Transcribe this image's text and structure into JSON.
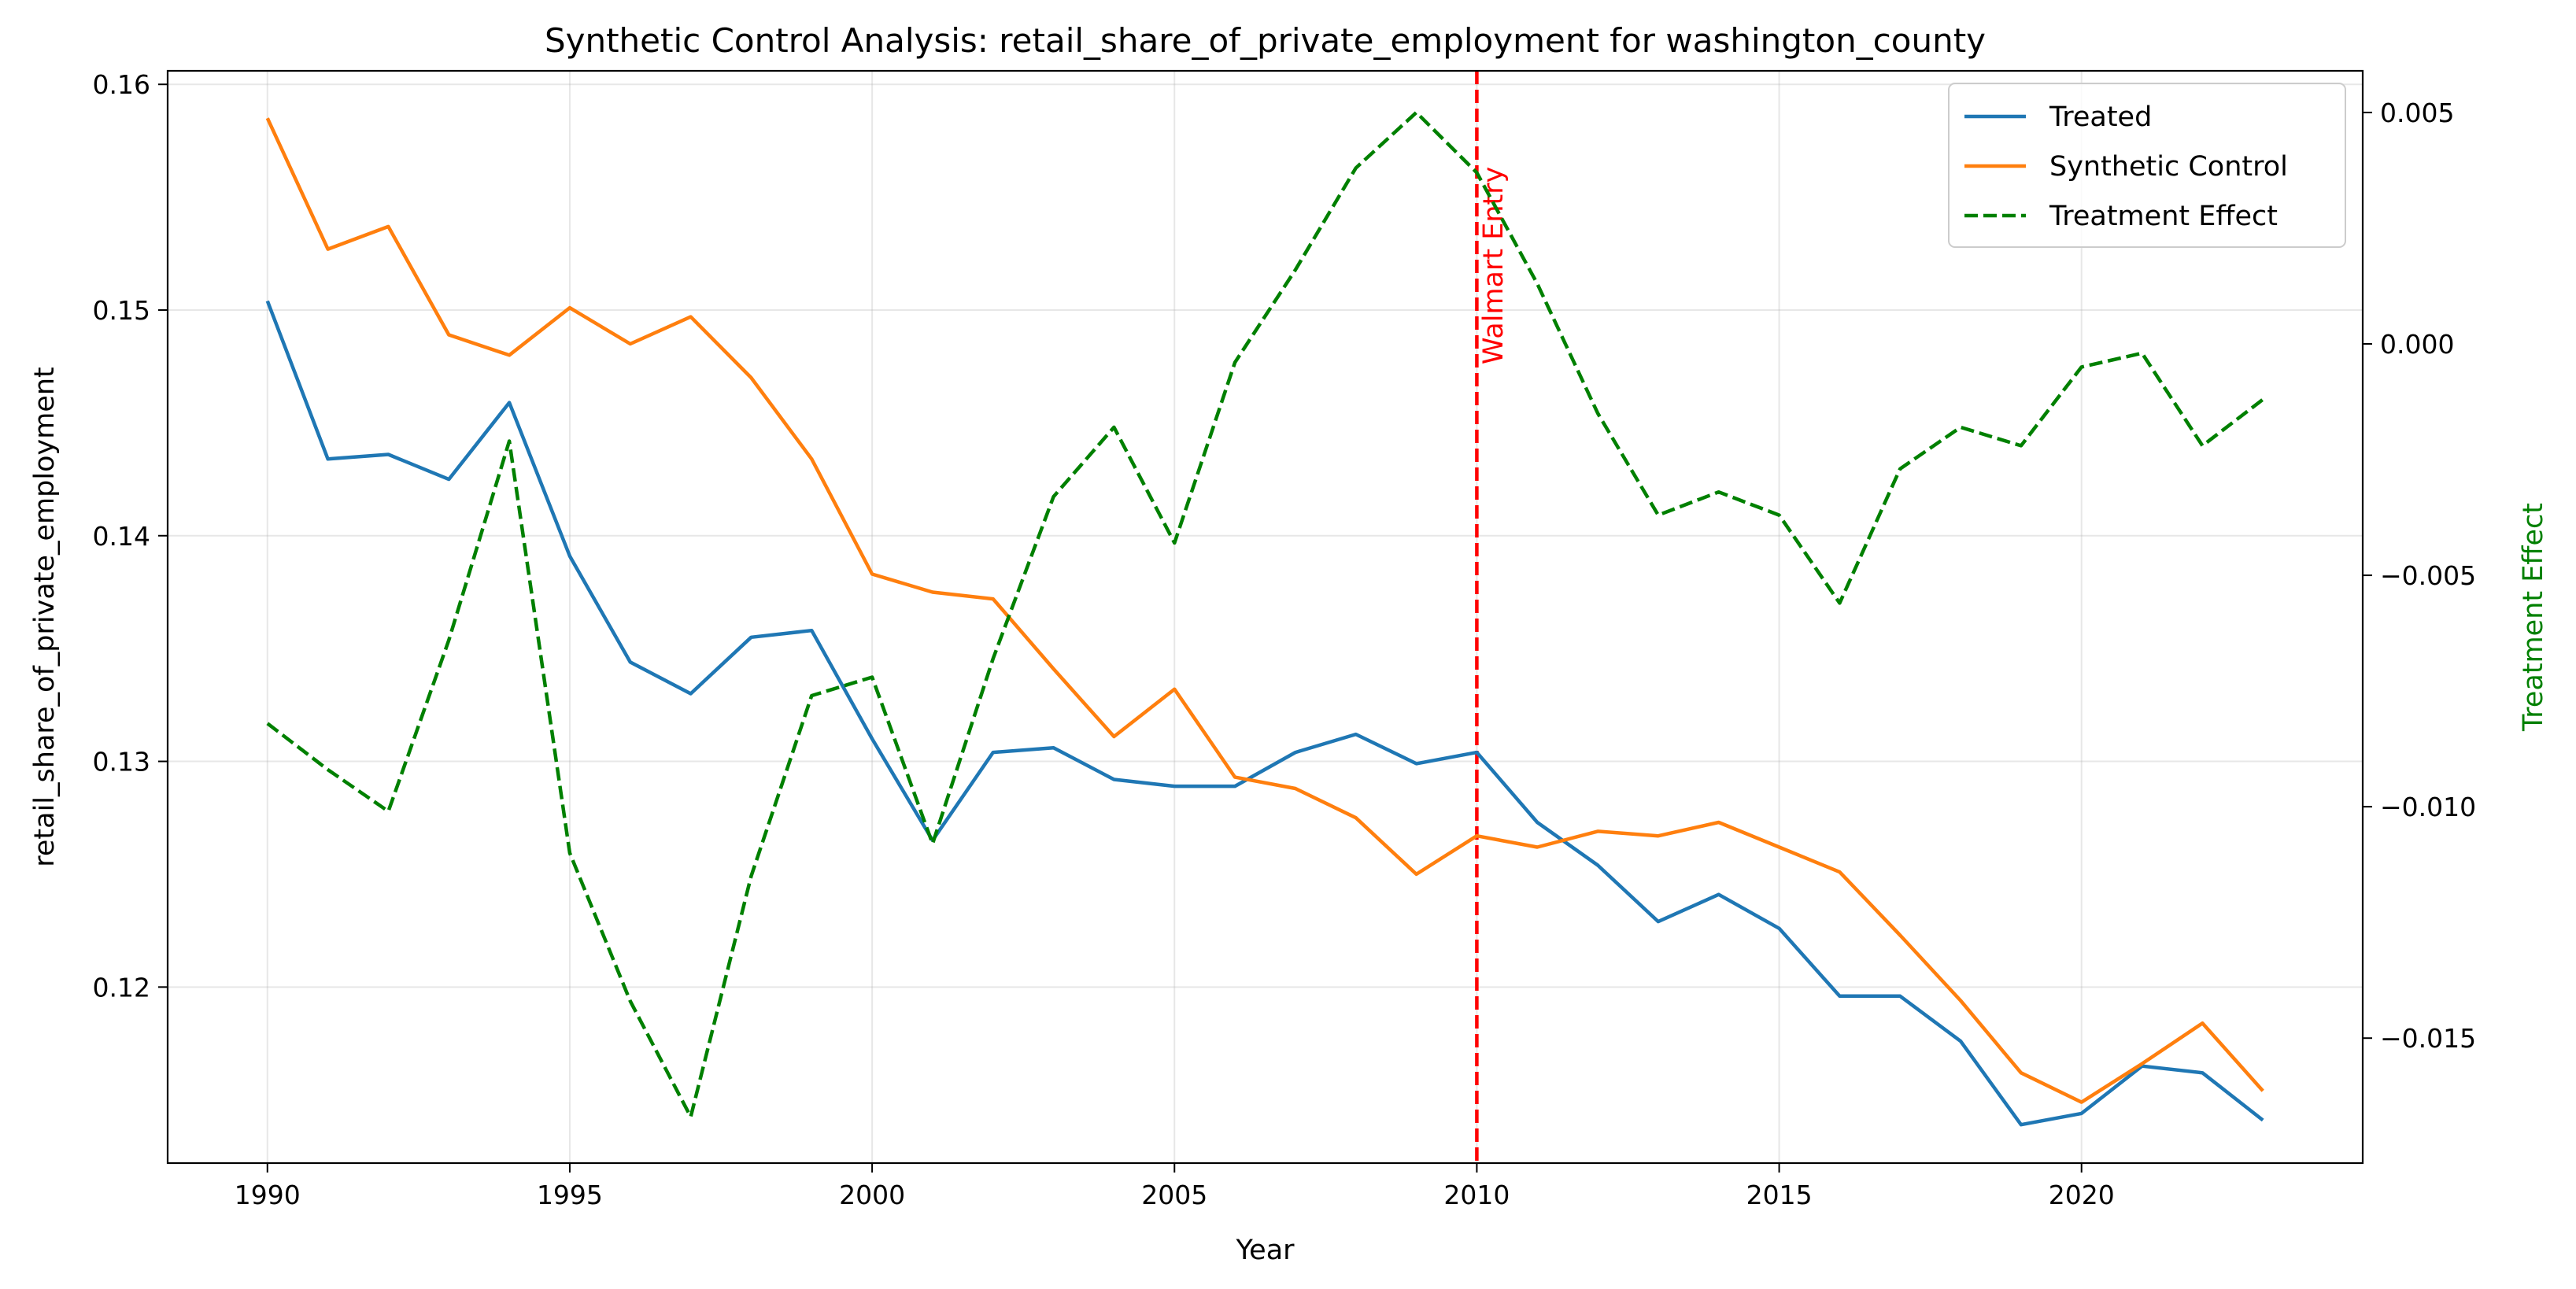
{
  "chart_data": {
    "type": "line",
    "title": "Synthetic Control Analysis: retail_share_of_private_employment for washington_county",
    "xlabel": "Year",
    "ylabel": "retail_share_of_private_employment",
    "y2label": "Treatment Effect",
    "xlim": [
      1988.35,
      2024.65
    ],
    "ylim": [
      0.1122,
      0.1606
    ],
    "y2lim": [
      -0.0177,
      0.0059
    ],
    "xticks": [
      "1990",
      "1995",
      "2000",
      "2005",
      "2010",
      "2015",
      "2020"
    ],
    "yticks": [
      "0.12",
      "0.13",
      "0.14",
      "0.15",
      "0.16"
    ],
    "y2ticks": [
      "−0.015",
      "−0.010",
      "−0.005",
      "0.000",
      "0.005"
    ],
    "grid": true,
    "legend_position": "top-right",
    "x": [
      1990,
      1991,
      1992,
      1993,
      1994,
      1995,
      1996,
      1997,
      1998,
      1999,
      2000,
      2001,
      2002,
      2003,
      2004,
      2005,
      2006,
      2007,
      2008,
      2009,
      2010,
      2011,
      2012,
      2013,
      2014,
      2015,
      2016,
      2017,
      2018,
      2019,
      2020,
      2021,
      2022,
      2023
    ],
    "series": [
      {
        "name": "Treated",
        "axis": "left",
        "color": "#1f77b4",
        "style": "solid",
        "values": [
          0.1504,
          0.1434,
          0.1436,
          0.1425,
          0.1459,
          0.1391,
          0.1344,
          0.133,
          0.1355,
          0.1358,
          0.131,
          0.1265,
          0.1304,
          0.1306,
          0.1292,
          0.1289,
          0.1289,
          0.1304,
          0.1312,
          0.1299,
          0.1304,
          0.1273,
          0.1254,
          0.1229,
          0.1241,
          0.1226,
          0.1196,
          0.1196,
          0.1176,
          0.1139,
          0.1144,
          0.1165,
          0.1162,
          0.1141
        ]
      },
      {
        "name": "Synthetic Control",
        "axis": "left",
        "color": "#ff7f0e",
        "style": "solid",
        "values": [
          0.1585,
          0.1527,
          0.1537,
          0.1489,
          0.148,
          0.1501,
          0.1485,
          0.1497,
          0.147,
          0.1434,
          0.1383,
          0.1375,
          0.1372,
          0.1341,
          0.1311,
          0.1332,
          0.1293,
          0.1288,
          0.1275,
          0.125,
          0.1267,
          0.1262,
          0.1269,
          0.1267,
          0.1273,
          0.1262,
          0.1251,
          0.1223,
          0.1194,
          0.1162,
          0.1149,
          0.1166,
          0.1184,
          0.1154
        ]
      },
      {
        "name": "Treatment Effect",
        "axis": "right",
        "color": "#008000",
        "style": "dashed",
        "values": [
          -0.0082,
          -0.0092,
          -0.0101,
          -0.0064,
          -0.0021,
          -0.011,
          -0.0142,
          -0.0167,
          -0.0115,
          -0.0076,
          -0.0072,
          -0.0108,
          -0.0068,
          -0.0033,
          -0.0018,
          -0.0043,
          -0.0004,
          0.0016,
          0.0038,
          0.005,
          0.0037,
          0.0013,
          -0.0015,
          -0.0037,
          -0.0032,
          -0.0037,
          -0.0056,
          -0.0027,
          -0.0018,
          -0.0022,
          -0.0005,
          -0.0002,
          -0.0022,
          -0.0012
        ]
      }
    ],
    "annotations": [
      {
        "type": "vline",
        "x": 2010,
        "color": "#ff0000",
        "style": "dashed",
        "label": "Walmart Entry"
      }
    ]
  }
}
